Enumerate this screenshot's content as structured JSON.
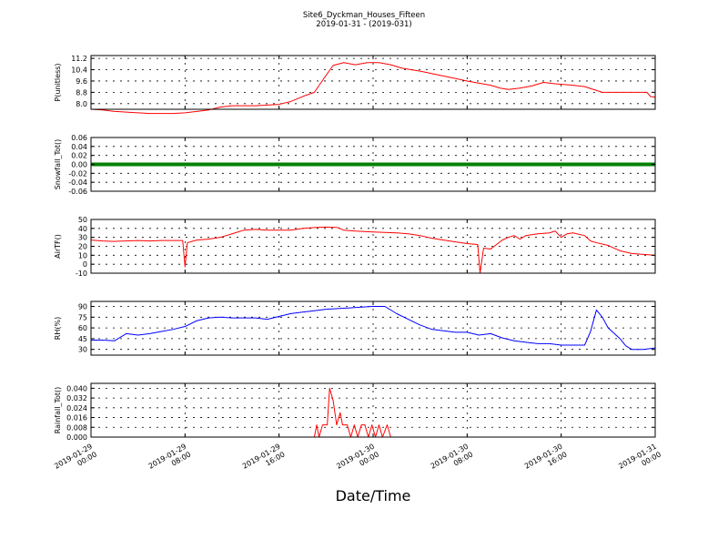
{
  "chart_data": {
    "title": "Site6_Dyckman_Houses_Fifteen",
    "subtitle": "2019-01-31 - (2019-031)",
    "xlabel": "Date/Time",
    "x_ticks": [
      [
        "2019-01-29",
        "00:00"
      ],
      [
        "2019-01-29",
        "08:00"
      ],
      [
        "2019-01-29",
        "16:00"
      ],
      [
        "2019-01-30",
        "00:00"
      ],
      [
        "2019-01-30",
        "08:00"
      ],
      [
        "2019-01-30",
        "16:00"
      ],
      [
        "2019-01-31",
        "00:00"
      ]
    ],
    "x_range_hours": [
      0,
      48
    ],
    "grid": true,
    "panels": [
      {
        "type": "line",
        "ylabel": "P(unitless)",
        "color": "#ff0000",
        "ylim": [
          7.6,
          11.4
        ],
        "yticks": [
          "8.0",
          "8.8",
          "9.6",
          "10.4",
          "11.2"
        ],
        "ytick_values": [
          8.0,
          8.8,
          9.6,
          10.4,
          11.2
        ],
        "points": [
          [
            0,
            7.6
          ],
          [
            1,
            7.55
          ],
          [
            2,
            7.45
          ],
          [
            3,
            7.4
          ],
          [
            4,
            7.35
          ],
          [
            5,
            7.3
          ],
          [
            6,
            7.3
          ],
          [
            7,
            7.3
          ],
          [
            8,
            7.35
          ],
          [
            9,
            7.45
          ],
          [
            10,
            7.55
          ],
          [
            11,
            7.75
          ],
          [
            12,
            7.85
          ],
          [
            13,
            7.85
          ],
          [
            14,
            7.85
          ],
          [
            15,
            7.9
          ],
          [
            16,
            7.95
          ],
          [
            17,
            8.15
          ],
          [
            18,
            8.5
          ],
          [
            19,
            8.8
          ],
          [
            20,
            10.0
          ],
          [
            20.6,
            10.7
          ],
          [
            21.5,
            10.9
          ],
          [
            22.5,
            10.75
          ],
          [
            23.5,
            10.9
          ],
          [
            24.5,
            10.9
          ],
          [
            25.5,
            10.75
          ],
          [
            26.5,
            10.5
          ],
          [
            28,
            10.3
          ],
          [
            30,
            9.95
          ],
          [
            32,
            9.6
          ],
          [
            34,
            9.3
          ],
          [
            34.8,
            9.1
          ],
          [
            35.5,
            9.0
          ],
          [
            36.5,
            9.1
          ],
          [
            37.5,
            9.25
          ],
          [
            38.5,
            9.5
          ],
          [
            39.5,
            9.4
          ],
          [
            41,
            9.3
          ],
          [
            42,
            9.2
          ],
          [
            43.5,
            8.8
          ],
          [
            44.5,
            8.8
          ],
          [
            45.5,
            8.8
          ],
          [
            46.5,
            8.8
          ],
          [
            47.3,
            8.8
          ],
          [
            47.6,
            8.5
          ],
          [
            48,
            8.45
          ]
        ]
      },
      {
        "type": "line",
        "ylabel": "Snowfall_Tot()",
        "color": "#008000",
        "ylim": [
          -0.06,
          0.06
        ],
        "yticks": [
          "-0.06",
          "-0.04",
          "-0.02",
          "0.00",
          "0.02",
          "0.04",
          "0.06"
        ],
        "ytick_values": [
          -0.06,
          -0.04,
          -0.02,
          0.0,
          0.02,
          0.04,
          0.06
        ],
        "points": [
          [
            0,
            0
          ],
          [
            48,
            0
          ]
        ]
      },
      {
        "type": "line",
        "ylabel": "AirTF()",
        "color": "#ff0000",
        "ylim": [
          -10,
          50
        ],
        "yticks": [
          "-10",
          "0",
          "10",
          "20",
          "30",
          "40",
          "50"
        ],
        "ytick_values": [
          -10,
          0,
          10,
          20,
          30,
          40,
          50
        ],
        "points": [
          [
            0,
            27
          ],
          [
            1,
            26
          ],
          [
            2,
            25.5
          ],
          [
            3,
            26
          ],
          [
            4,
            26.5
          ],
          [
            5,
            26
          ],
          [
            6,
            26.5
          ],
          [
            7.8,
            26.5
          ],
          [
            8.0,
            -3
          ],
          [
            8.2,
            24
          ],
          [
            9,
            27
          ],
          [
            10,
            28
          ],
          [
            11,
            30
          ],
          [
            12,
            34
          ],
          [
            13,
            38
          ],
          [
            14,
            39
          ],
          [
            15,
            38
          ],
          [
            16,
            38
          ],
          [
            17,
            38
          ],
          [
            18,
            40
          ],
          [
            19,
            41
          ],
          [
            20,
            41.5
          ],
          [
            21,
            41
          ],
          [
            21.5,
            38
          ],
          [
            22.5,
            37
          ],
          [
            24,
            36
          ],
          [
            26,
            35
          ],
          [
            27,
            34
          ],
          [
            28,
            32
          ],
          [
            29,
            29
          ],
          [
            30,
            27
          ],
          [
            31,
            25
          ],
          [
            32,
            23
          ],
          [
            32.9,
            22
          ],
          [
            33.1,
            -10
          ],
          [
            33.4,
            18
          ],
          [
            34,
            17
          ],
          [
            34.5,
            22
          ],
          [
            35,
            27
          ],
          [
            35.5,
            30
          ],
          [
            36,
            32
          ],
          [
            36.5,
            28
          ],
          [
            37,
            32
          ],
          [
            38,
            34
          ],
          [
            39,
            35
          ],
          [
            39.5,
            37
          ],
          [
            40,
            30
          ],
          [
            40.5,
            34
          ],
          [
            41,
            35
          ],
          [
            42,
            32
          ],
          [
            42.5,
            26
          ],
          [
            43,
            24
          ],
          [
            44,
            21
          ],
          [
            45,
            15
          ],
          [
            46,
            12
          ],
          [
            47,
            11
          ],
          [
            48,
            10
          ]
        ]
      },
      {
        "type": "line",
        "ylabel": "RH(%)",
        "color": "#0000ff",
        "ylim": [
          22,
          97
        ],
        "yticks": [
          "30",
          "45",
          "60",
          "75",
          "90"
        ],
        "ytick_values": [
          30,
          45,
          60,
          75,
          90
        ],
        "points": [
          [
            0,
            43
          ],
          [
            1,
            43
          ],
          [
            2,
            42
          ],
          [
            3,
            52
          ],
          [
            4,
            50
          ],
          [
            5,
            52
          ],
          [
            6,
            55
          ],
          [
            7,
            58
          ],
          [
            8,
            62
          ],
          [
            9,
            70
          ],
          [
            10,
            74
          ],
          [
            11,
            75
          ],
          [
            12,
            74
          ],
          [
            13,
            74
          ],
          [
            14,
            74
          ],
          [
            15,
            72
          ],
          [
            16,
            76
          ],
          [
            17,
            80
          ],
          [
            18,
            82
          ],
          [
            19,
            84
          ],
          [
            20,
            86
          ],
          [
            21,
            87
          ],
          [
            22,
            88
          ],
          [
            23,
            89
          ],
          [
            24,
            90
          ],
          [
            25,
            90
          ],
          [
            26,
            80
          ],
          [
            27,
            72
          ],
          [
            28,
            64
          ],
          [
            29,
            58
          ],
          [
            30,
            56
          ],
          [
            31,
            54
          ],
          [
            32,
            54
          ],
          [
            33,
            50
          ],
          [
            34,
            52
          ],
          [
            35,
            46
          ],
          [
            36,
            42
          ],
          [
            37,
            40
          ],
          [
            38,
            38
          ],
          [
            39,
            38
          ],
          [
            40,
            36
          ],
          [
            41,
            36
          ],
          [
            42,
            36
          ],
          [
            42.5,
            55
          ],
          [
            43,
            85
          ],
          [
            43.5,
            75
          ],
          [
            44,
            60
          ],
          [
            45,
            45
          ],
          [
            45.5,
            35
          ],
          [
            46,
            30
          ],
          [
            47,
            30
          ],
          [
            48,
            32
          ]
        ]
      },
      {
        "type": "line",
        "ylabel": "Rainfall_Tot()",
        "color": "#ff0000",
        "ylim": [
          0,
          0.044
        ],
        "yticks": [
          "0.000",
          "0.008",
          "0.016",
          "0.024",
          "0.032",
          "0.040"
        ],
        "ytick_values": [
          0.0,
          0.008,
          0.016,
          0.024,
          0.032,
          0.04
        ],
        "points": [
          [
            0,
            0
          ],
          [
            19,
            0
          ],
          [
            19.2,
            0.01
          ],
          [
            19.4,
            0
          ],
          [
            19.7,
            0.01
          ],
          [
            20.1,
            0.01
          ],
          [
            20.3,
            0.04
          ],
          [
            20.6,
            0.03
          ],
          [
            20.9,
            0.01
          ],
          [
            21.2,
            0.02
          ],
          [
            21.4,
            0.01
          ],
          [
            21.8,
            0.01
          ],
          [
            22.1,
            0
          ],
          [
            22.4,
            0.01
          ],
          [
            22.7,
            0
          ],
          [
            23.0,
            0.01
          ],
          [
            23.3,
            0.01
          ],
          [
            23.6,
            0
          ],
          [
            23.9,
            0.01
          ],
          [
            24.2,
            0
          ],
          [
            24.5,
            0.01
          ],
          [
            24.8,
            0
          ],
          [
            25.2,
            0.01
          ],
          [
            25.5,
            0
          ],
          [
            48,
            0
          ]
        ]
      }
    ]
  }
}
